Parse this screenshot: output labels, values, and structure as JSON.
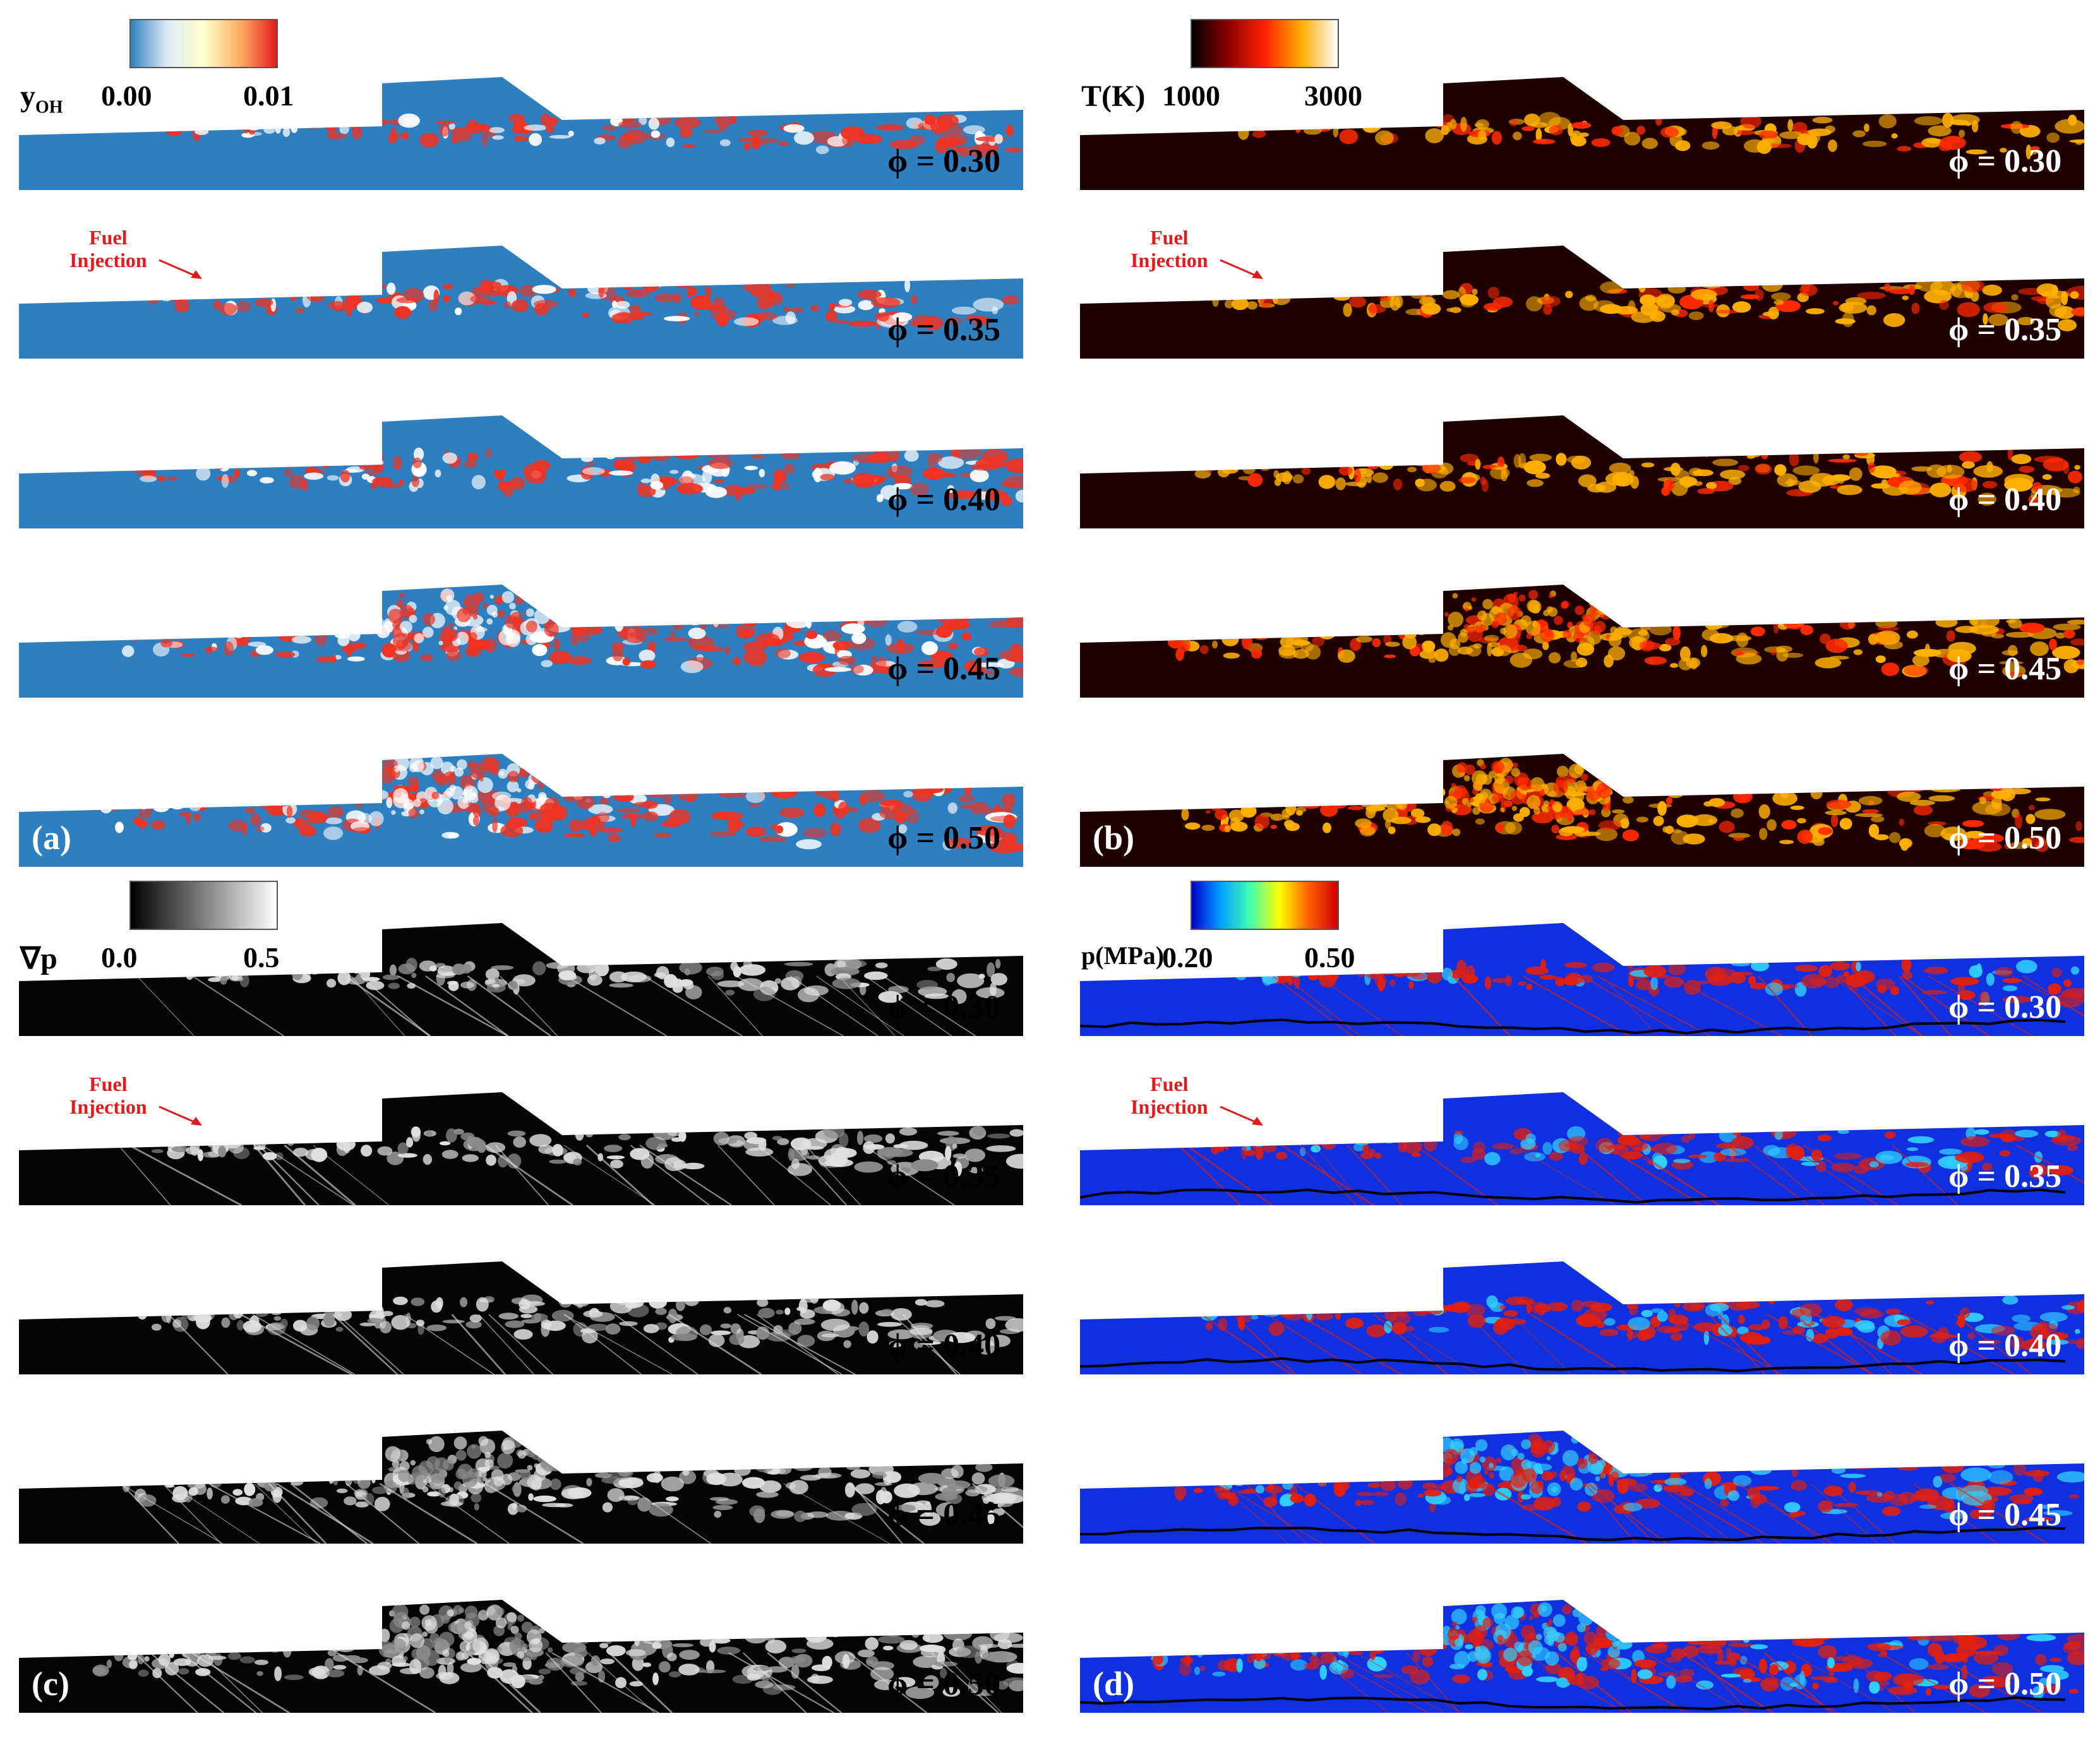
{
  "panels": [
    {
      "id": "a",
      "label": "(a)",
      "variable": "y",
      "variable_sub": "OH",
      "colorbar": {
        "min": "0.00",
        "max": "0.01",
        "colors": [
          "#3182bd",
          "#deebf7",
          "#ffffcc",
          "#fdae61",
          "#e31a1c"
        ]
      },
      "background": "#2d7fc0",
      "feature": "#ee3322",
      "feature2": "#ffffff"
    },
    {
      "id": "b",
      "label": "(b)",
      "variable": "T(K)",
      "colorbar": {
        "min": "1000",
        "max": "3000",
        "colors": [
          "#000000",
          "#8b0000",
          "#ff2200",
          "#ffaa00",
          "#ffffff"
        ]
      },
      "background": "#1e0000",
      "feature": "#ffb000",
      "feature2": "#ff2a00"
    },
    {
      "id": "c",
      "label": "(c)",
      "variable": "∇p",
      "colorbar": {
        "min": "0.0",
        "max": "0.5",
        "colors": [
          "#000000",
          "#ffffff"
        ]
      },
      "background": "#050505",
      "feature": "#e0e0e0",
      "feature2": "#8a8a8a"
    },
    {
      "id": "d",
      "label": "(d)",
      "variable": "p(MPa)",
      "colorbar": {
        "min": "0.20",
        "max": "0.50",
        "colors": [
          "#0000d0",
          "#00a0ff",
          "#40ffb0",
          "#ffff00",
          "#ff6000",
          "#cc0000"
        ]
      },
      "background": "#1030e0",
      "feature": "#e02010",
      "feature2": "#30d0ff"
    }
  ],
  "equivalence_ratios": [
    "ϕ = 0.30",
    "ϕ = 0.35",
    "ϕ = 0.40",
    "ϕ = 0.45",
    "ϕ = 0.50"
  ],
  "annotation": {
    "fuel_line1": "Fuel",
    "fuel_line2": "Injection"
  }
}
